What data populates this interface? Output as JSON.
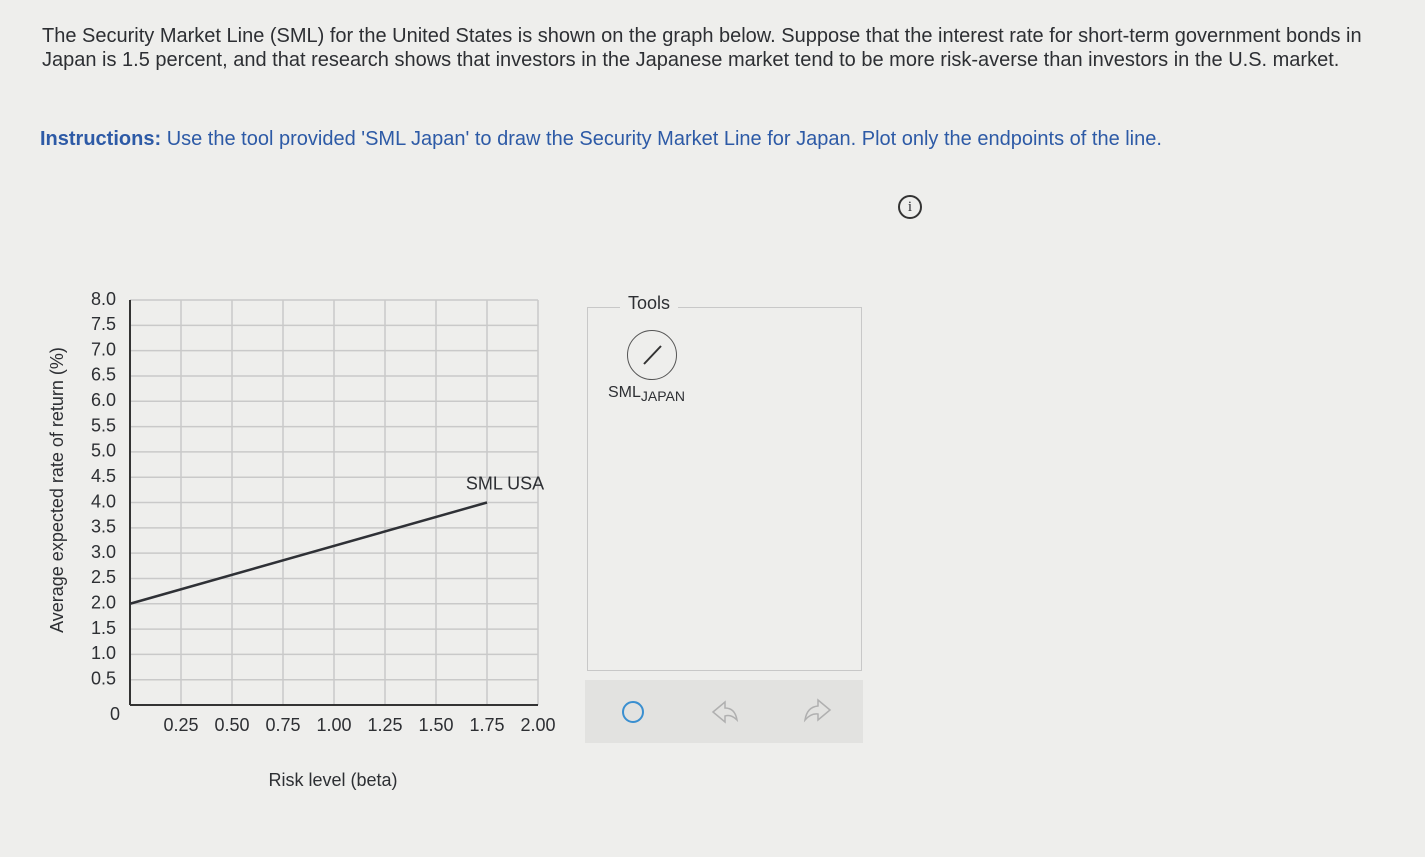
{
  "question": {
    "text": "The Security Market Line (SML) for the United States is shown on the graph below. Suppose that the interest rate for short-term government bonds in Japan is 1.5 percent, and that research shows that investors in the Japanese market tend to be more risk-averse than investors in the U.S. market.",
    "instructions_label": "Instructions:",
    "instructions_text": "Use the tool provided 'SML Japan' to draw the Security Market Line for Japan. Plot only the endpoints of the line."
  },
  "tools": {
    "title": "Tools",
    "tool_label": "SML",
    "tool_subscript": "JAPAN"
  },
  "chart_data": {
    "type": "line",
    "xlabel": "Risk level (beta)",
    "ylabel": "Average expected rate of return (%)",
    "xlim": [
      0,
      2
    ],
    "ylim": [
      0,
      8
    ],
    "xticks": [
      {
        "value": 0.25,
        "label": "0.25"
      },
      {
        "value": 0.5,
        "label": "0.50"
      },
      {
        "value": 0.75,
        "label": "0.75"
      },
      {
        "value": 1,
        "label": "1.00"
      },
      {
        "value": 1.25,
        "label": "1.25"
      },
      {
        "value": 1.5,
        "label": "1.50"
      },
      {
        "value": 1.75,
        "label": "1.75"
      },
      {
        "value": 2,
        "label": "2.00"
      }
    ],
    "yticks": [
      0,
      {
        "value": 0.5,
        "label": "0.5"
      },
      {
        "value": 1,
        "label": "1.0"
      },
      {
        "value": 1.5,
        "label": "1.5"
      },
      {
        "value": 2,
        "label": "2.0"
      },
      {
        "value": 2.5,
        "label": "2.5"
      },
      {
        "value": 3,
        "label": "3.0"
      },
      {
        "value": 3.5,
        "label": "3.5"
      },
      {
        "value": 4,
        "label": "4.0"
      },
      {
        "value": 4.5,
        "label": "4.5"
      },
      {
        "value": 5,
        "label": "5.0"
      },
      {
        "value": 5.5,
        "label": "5.5"
      },
      {
        "value": 6,
        "label": "6.0"
      },
      {
        "value": 6.5,
        "label": "6.5"
      },
      {
        "value": 7,
        "label": "7.0"
      },
      {
        "value": 7.5,
        "label": "7.5"
      },
      {
        "value": 8,
        "label": "8.0"
      }
    ],
    "grid": true,
    "series": [
      {
        "name": "SML USA",
        "color": "#2f3136",
        "x": [
          0,
          1.75
        ],
        "values": [
          2,
          4
        ]
      }
    ]
  }
}
